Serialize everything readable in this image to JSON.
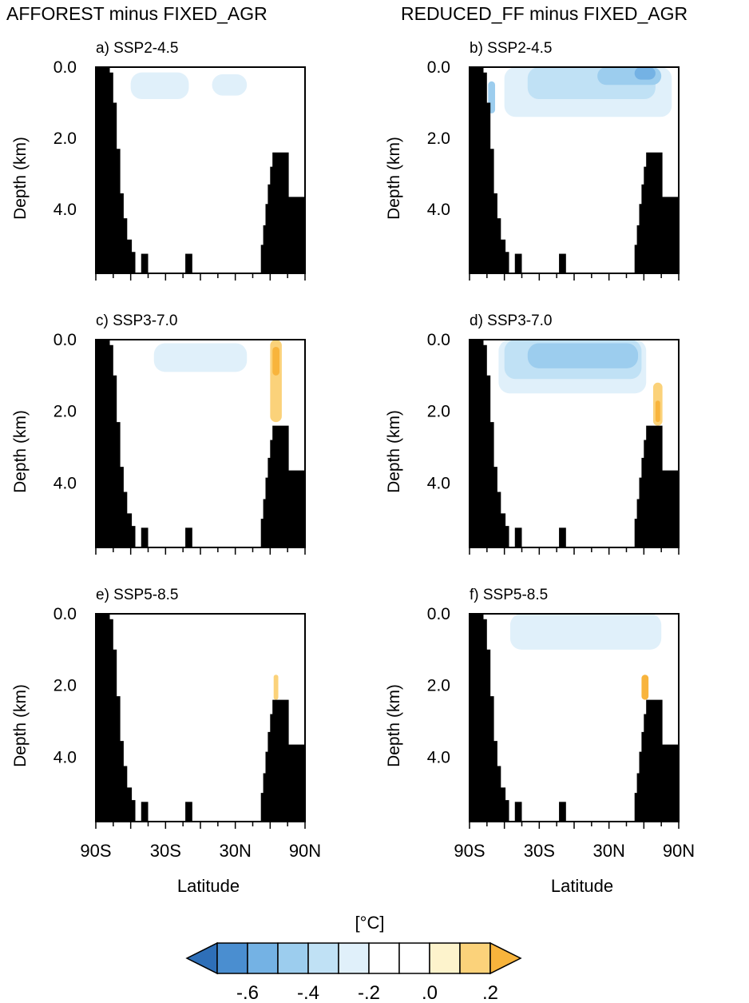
{
  "columns": [
    "AFFOREST minus FIXED_AGR",
    "REDUCED_FF minus FIXED_AGR"
  ],
  "colorbar": {
    "unit": "[°C]",
    "tick_labels": [
      "-.6",
      "-.4",
      "-.2",
      ".0",
      ".2"
    ],
    "bounds": [
      -0.7,
      -0.6,
      -0.5,
      -0.4,
      -0.3,
      -0.2,
      -0.1,
      0.0,
      0.1,
      0.2,
      0.3
    ],
    "colors": [
      "#2e6fb8",
      "#4a8ed0",
      "#74b2e4",
      "#9ccdee",
      "#c0e1f5",
      "#e0f0fa",
      "#ffffff",
      "#ffffff",
      "#fdf3cc",
      "#fbd27a",
      "#f8b43c"
    ]
  },
  "chart_data": [
    {
      "type": "heatmap",
      "panel": "a) SSP2-4.5",
      "column": "AFFOREST minus FIXED_AGR",
      "scenario": "SSP2-4.5",
      "ylabel": "Depth (km)",
      "xlabel": "",
      "yticks": [
        "0.0",
        "2.0",
        "4.0"
      ],
      "xticks": [],
      "ylim": [
        5.8,
        0
      ],
      "xlim": [
        -90,
        90
      ],
      "features": [
        {
          "lat": [
            -72,
            82
          ],
          "depth": [
            0,
            2.0
          ],
          "value": -0.15
        },
        {
          "lat": [
            -60,
            -10
          ],
          "depth": [
            0.15,
            0.9
          ],
          "value": -0.25
        },
        {
          "lat": [
            10,
            40
          ],
          "depth": [
            0.2,
            0.8
          ],
          "value": -0.25
        },
        {
          "lat": [
            62,
            78
          ],
          "depth": [
            0,
            2.4
          ],
          "value": -0.2
        }
      ]
    },
    {
      "type": "heatmap",
      "panel": "b) SSP2-4.5",
      "column": "REDUCED_FF minus FIXED_AGR",
      "scenario": "SSP2-4.5",
      "ylabel": "Depth (km)",
      "xlabel": "",
      "yticks": [
        "0.0",
        "2.0",
        "4.0"
      ],
      "xticks": [],
      "ylim": [
        5.8,
        0
      ],
      "xlim": [
        -90,
        90
      ],
      "features": [
        {
          "lat": [
            -75,
            84
          ],
          "depth": [
            0,
            2.2
          ],
          "value": -0.15
        },
        {
          "lat": [
            -62,
            -52
          ],
          "depth": [
            0.5,
            4.0
          ],
          "value": -0.15
        },
        {
          "lat": [
            -60,
            84
          ],
          "depth": [
            0,
            1.4
          ],
          "value": -0.25
        },
        {
          "lat": [
            -40,
            70
          ],
          "depth": [
            0,
            0.9
          ],
          "value": -0.35
        },
        {
          "lat": [
            20,
            75
          ],
          "depth": [
            0,
            0.5
          ],
          "value": -0.45
        },
        {
          "lat": [
            52,
            70
          ],
          "depth": [
            0,
            0.35
          ],
          "value": -0.55
        },
        {
          "lat": [
            -74,
            -68
          ],
          "depth": [
            0.4,
            1.3
          ],
          "value": -0.45
        }
      ]
    },
    {
      "type": "heatmap",
      "panel": "c) SSP3-7.0",
      "column": "AFFOREST minus FIXED_AGR",
      "scenario": "SSP3-7.0",
      "ylabel": "Depth (km)",
      "xlabel": "",
      "yticks": [
        "0.0",
        "2.0",
        "4.0"
      ],
      "xticks": [],
      "ylim": [
        5.8,
        0
      ],
      "xlim": [
        -90,
        90
      ],
      "features": [
        {
          "lat": [
            -62,
            58
          ],
          "depth": [
            0.05,
            1.3
          ],
          "value": -0.15
        },
        {
          "lat": [
            -40,
            40
          ],
          "depth": [
            0.1,
            0.9
          ],
          "value": -0.25
        },
        {
          "lat": [
            60,
            70
          ],
          "depth": [
            0,
            2.3
          ],
          "value": 0.15
        },
        {
          "lat": [
            62,
            68
          ],
          "depth": [
            0.2,
            1.0
          ],
          "value": 0.25
        }
      ]
    },
    {
      "type": "heatmap",
      "panel": "d) SSP3-7.0",
      "column": "REDUCED_FF minus FIXED_AGR",
      "scenario": "SSP3-7.0",
      "ylabel": "Depth (km)",
      "xlabel": "",
      "yticks": [
        "0.0",
        "2.0",
        "4.0"
      ],
      "xticks": [],
      "ylim": [
        5.8,
        0
      ],
      "xlim": [
        -90,
        90
      ],
      "features": [
        {
          "lat": [
            -70,
            78
          ],
          "depth": [
            0,
            1.9
          ],
          "value": -0.15
        },
        {
          "lat": [
            -65,
            62
          ],
          "depth": [
            0,
            1.5
          ],
          "value": -0.25
        },
        {
          "lat": [
            -60,
            58
          ],
          "depth": [
            0,
            1.1
          ],
          "value": -0.35
        },
        {
          "lat": [
            -40,
            55
          ],
          "depth": [
            0.1,
            0.8
          ],
          "value": -0.45
        },
        {
          "lat": [
            68,
            76
          ],
          "depth": [
            1.2,
            2.4
          ],
          "value": 0.15
        },
        {
          "lat": [
            70,
            74
          ],
          "depth": [
            1.7,
            2.3
          ],
          "value": 0.25
        }
      ]
    },
    {
      "type": "heatmap",
      "panel": "e) SSP5-8.5",
      "column": "AFFOREST minus FIXED_AGR",
      "scenario": "SSP5-8.5",
      "ylabel": "Depth (km)",
      "xlabel": "Latitude",
      "yticks": [
        "0.0",
        "2.0",
        "4.0"
      ],
      "xticks": [
        "90S",
        "30S",
        "30N",
        "90N"
      ],
      "ylim": [
        5.8,
        0
      ],
      "xlim": [
        -90,
        90
      ],
      "features": [
        {
          "lat": [
            63,
            67
          ],
          "depth": [
            1.7,
            2.4
          ],
          "value": 0.15
        }
      ]
    },
    {
      "type": "heatmap",
      "panel": "f) SSP5-8.5",
      "column": "REDUCED_FF minus FIXED_AGR",
      "scenario": "SSP5-8.5",
      "ylabel": "Depth (km)",
      "xlabel": "Latitude",
      "yticks": [
        "0.0",
        "2.0",
        "4.0"
      ],
      "xticks": [
        "90S",
        "30S",
        "30N",
        "90N"
      ],
      "ylim": [
        5.8,
        0
      ],
      "xlim": [
        -90,
        90
      ],
      "features": [
        {
          "lat": [
            -70,
            90
          ],
          "depth": [
            0,
            1.9
          ],
          "value": -0.15
        },
        {
          "lat": [
            -64,
            82
          ],
          "depth": [
            0,
            1.4
          ],
          "value": -0.2
        },
        {
          "lat": [
            -55,
            75
          ],
          "depth": [
            0,
            1.0
          ],
          "value": -0.25
        },
        {
          "lat": [
            -45,
            20
          ],
          "depth": [
            0,
            0.5
          ],
          "value": -0.3
        },
        {
          "lat": [
            58,
            64
          ],
          "depth": [
            1.7,
            2.4
          ],
          "value": 0.25
        }
      ]
    }
  ]
}
